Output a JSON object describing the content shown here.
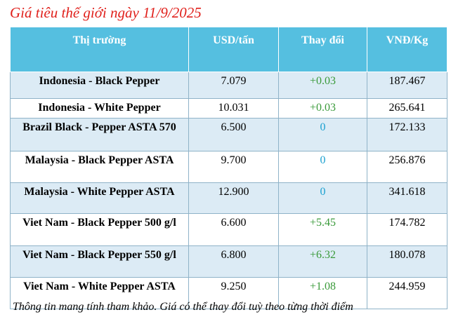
{
  "title": "Giá tiêu thế giới ngày 11/9/2025",
  "table": {
    "header": [
      "Thị trường",
      "USD/tấn",
      "Thay đổi",
      "VNĐ/Kg"
    ],
    "rows": [
      [
        "Indonesia - Black Pepper",
        "7.079",
        "+0.03",
        "187.467"
      ],
      [
        "Indonesia - White Pepper",
        "10.031",
        "+0.03",
        "265.641"
      ],
      [
        "Brazil Black - Pepper ASTA 570",
        "6.500",
        "0",
        "172.133"
      ],
      [
        "Malaysia - Black Pepper ASTA",
        "9.700",
        "0",
        "256.876"
      ],
      [
        "Malaysia - White Pepper ASTA",
        "12.900",
        "0",
        "341.618"
      ],
      [
        "Viet Nam - Black Pepper 500 g/l",
        "6.600",
        "+5.45",
        "174.782"
      ],
      [
        "Viet Nam - Black Pepper 550 g/l",
        "6.800",
        "+6.32",
        "180.078"
      ],
      [
        "Viet Nam - White Pepper ASTA",
        "9.250",
        "+1.08",
        "244.959"
      ]
    ]
  },
  "footnote": "Thông tin mang tính tham khảo. Giá có thể thay đổi tuỳ theo từng thời điểm"
}
